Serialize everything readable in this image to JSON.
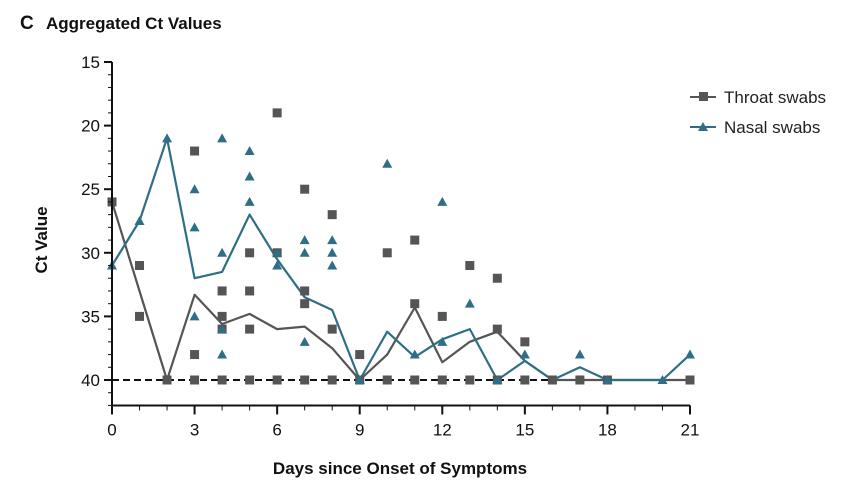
{
  "figure": {
    "panel_letter": "C",
    "title": "Aggregated Ct Values"
  },
  "colors": {
    "throat": "#555555",
    "nasal": "#2e6f86",
    "axis": "#111111",
    "reference_line": "#111111"
  },
  "chart_data": {
    "type": "scatter",
    "title": "Aggregated Ct Values",
    "xlabel": "Days since Onset of Symptoms",
    "ylabel": "Ct Value",
    "xlim": [
      0,
      21
    ],
    "ylim": [
      15,
      42
    ],
    "y_inverted": true,
    "x_ticks": [
      0,
      3,
      6,
      9,
      12,
      15,
      18,
      21
    ],
    "y_ticks": [
      15,
      20,
      25,
      30,
      35,
      40
    ],
    "reference_line_y": 40,
    "legend_position": "top-right",
    "series": [
      {
        "name": "Throat swabs",
        "marker": "square",
        "points": [
          [
            0,
            26
          ],
          [
            1,
            31
          ],
          [
            1,
            35
          ],
          [
            2,
            40
          ],
          [
            3,
            22
          ],
          [
            3,
            38
          ],
          [
            3,
            40
          ],
          [
            4,
            33
          ],
          [
            4,
            35
          ],
          [
            4,
            36
          ],
          [
            4,
            40
          ],
          [
            5,
            30
          ],
          [
            5,
            33
          ],
          [
            5,
            36
          ],
          [
            5,
            40
          ],
          [
            6,
            19
          ],
          [
            6,
            30
          ],
          [
            6,
            40
          ],
          [
            7,
            25
          ],
          [
            7,
            33
          ],
          [
            7,
            34
          ],
          [
            7,
            40
          ],
          [
            8,
            27
          ],
          [
            8,
            36
          ],
          [
            8,
            40
          ],
          [
            9,
            38
          ],
          [
            9,
            40
          ],
          [
            10,
            30
          ],
          [
            10,
            40
          ],
          [
            11,
            29
          ],
          [
            11,
            34
          ],
          [
            11,
            40
          ],
          [
            12,
            35
          ],
          [
            12,
            40
          ],
          [
            13,
            31
          ],
          [
            13,
            40
          ],
          [
            14,
            32
          ],
          [
            14,
            36
          ],
          [
            14,
            40
          ],
          [
            15,
            37
          ],
          [
            15,
            40
          ],
          [
            16,
            40
          ],
          [
            17,
            40
          ],
          [
            18,
            40
          ],
          [
            21,
            40
          ]
        ],
        "mean_line": [
          [
            0,
            26
          ],
          [
            1,
            33
          ],
          [
            2,
            40
          ],
          [
            3,
            33.3
          ],
          [
            4,
            35.6
          ],
          [
            5,
            34.8
          ],
          [
            6,
            36
          ],
          [
            7,
            35.8
          ],
          [
            8,
            37.5
          ],
          [
            9,
            40
          ],
          [
            10,
            38
          ],
          [
            11,
            34.3
          ],
          [
            12,
            38.6
          ],
          [
            13,
            37
          ],
          [
            14,
            36.2
          ],
          [
            15,
            38.5
          ],
          [
            16,
            40
          ],
          [
            17,
            40
          ],
          [
            18,
            40
          ],
          [
            19,
            40
          ],
          [
            20,
            40
          ],
          [
            21,
            40
          ]
        ]
      },
      {
        "name": "Nasal swabs",
        "marker": "triangle",
        "points": [
          [
            0,
            31
          ],
          [
            1,
            27.5
          ],
          [
            2,
            21
          ],
          [
            3,
            25
          ],
          [
            3,
            28
          ],
          [
            3,
            35
          ],
          [
            4,
            21
          ],
          [
            4,
            30
          ],
          [
            4,
            36
          ],
          [
            4,
            38
          ],
          [
            5,
            22
          ],
          [
            5,
            24
          ],
          [
            5,
            26
          ],
          [
            6,
            30
          ],
          [
            6,
            31
          ],
          [
            7,
            29
          ],
          [
            7,
            30
          ],
          [
            7,
            37
          ],
          [
            8,
            29
          ],
          [
            8,
            30
          ],
          [
            8,
            31
          ],
          [
            9,
            40
          ],
          [
            10,
            23
          ],
          [
            11,
            38
          ],
          [
            12,
            26
          ],
          [
            12,
            37
          ],
          [
            13,
            34
          ],
          [
            14,
            40
          ],
          [
            15,
            38
          ],
          [
            17,
            38
          ],
          [
            18,
            40
          ],
          [
            20,
            40
          ],
          [
            21,
            38
          ]
        ],
        "mean_line": [
          [
            0,
            31
          ],
          [
            1,
            27.5
          ],
          [
            2,
            21
          ],
          [
            3,
            32
          ],
          [
            4,
            31.5
          ],
          [
            5,
            27
          ],
          [
            6,
            30.5
          ],
          [
            7,
            33.5
          ],
          [
            8,
            34.5
          ],
          [
            9,
            40
          ],
          [
            10,
            36.2
          ],
          [
            11,
            38.2
          ],
          [
            12,
            36.8
          ],
          [
            13,
            36
          ],
          [
            14,
            40
          ],
          [
            15,
            38.5
          ],
          [
            16,
            40
          ],
          [
            17,
            39
          ],
          [
            18,
            40
          ],
          [
            19,
            40
          ],
          [
            20,
            40
          ],
          [
            21,
            38
          ]
        ]
      }
    ]
  }
}
